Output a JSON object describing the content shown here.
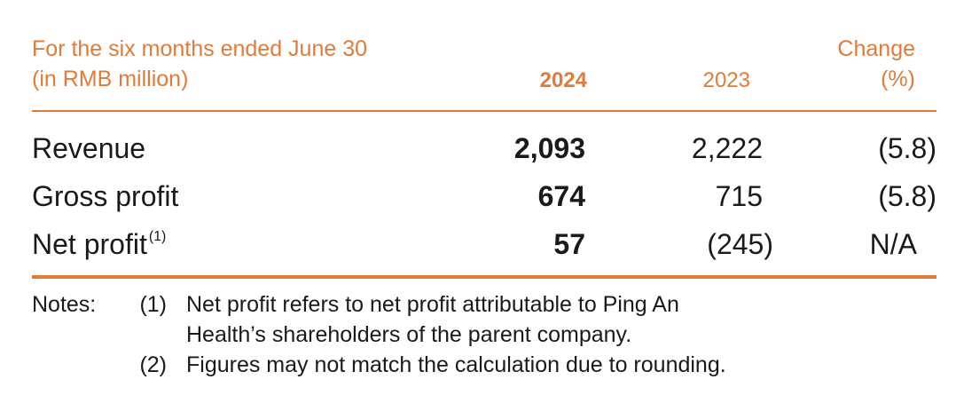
{
  "header": {
    "label_line1": "For the six months ended June 30",
    "label_line2": "(in RMB million)",
    "col_2024": "2024",
    "col_2023": "2023",
    "col_change_line1": "Change",
    "col_change_line2": "(%)"
  },
  "rows": [
    {
      "label": "Revenue",
      "footnote": "",
      "v2024": "2,093",
      "v2023": "2,222",
      "change": "(5.8)"
    },
    {
      "label": "Gross profit",
      "footnote": "",
      "v2024": "674",
      "v2023": "715",
      "change": "(5.8)"
    },
    {
      "label": "Net profit",
      "footnote": "(1)",
      "v2024": "57",
      "v2023": "(245)",
      "change": "N/A"
    }
  ],
  "notes": {
    "lead": "Notes:",
    "items": [
      {
        "num": "(1)",
        "line1": "Net profit refers to net profit attributable to Ping An",
        "line2": "Health’s shareholders of the parent company."
      },
      {
        "num": "(2)",
        "line1": "Figures may not match the calculation due to rounding."
      }
    ]
  },
  "colors": {
    "accent": "#e07b39",
    "text": "#1a1a1a"
  }
}
